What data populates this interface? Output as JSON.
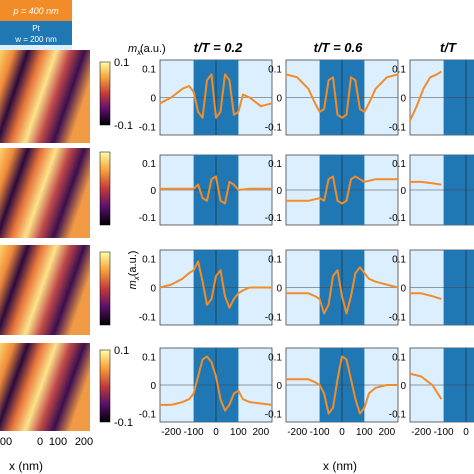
{
  "legend": {
    "p_label": "p = 400 nm",
    "pt_label": "Pt",
    "w_label": "w = 200 nm",
    "colors": {
      "orange": "#f28c28",
      "pt_blue": "#1f78b4",
      "light_blue": "#dcefff"
    }
  },
  "colorbar": {
    "label": "m",
    "label_sub": "x",
    "unit": "(a.u.)",
    "ticks": [
      "0.1",
      "0",
      "-0.1"
    ]
  },
  "left_axis": {
    "xlabel": "x (nm)",
    "xticks": [
      "00",
      "0",
      "100",
      "200"
    ]
  },
  "mid_axis": {
    "xlabel": "x (nm)"
  },
  "ylabel_main": "m",
  "ylabel_sub": "x",
  "ylabel_unit": "(a.u.)",
  "col_titles": [
    {
      "prefix": "t/T = 0.2"
    },
    {
      "prefix": "t/T = 0.6"
    },
    {
      "prefix": "t/T"
    }
  ],
  "chart_data": {
    "type": "line",
    "x_range": [
      -250,
      250
    ],
    "y_range": [
      -0.13,
      0.13
    ],
    "yticks": [
      "0.1",
      "0",
      "-0.1"
    ],
    "xticks": [
      "-200",
      "-100",
      "0",
      "100",
      "200"
    ],
    "xtick_values": [
      -200,
      -100,
      0,
      100,
      200
    ],
    "ytick_values": [
      0.1,
      0,
      -0.1
    ],
    "pt_region": [
      -100,
      100
    ],
    "rows": [
      [
        {
          "x": [
            -250,
            -200,
            -150,
            -120,
            -100,
            -80,
            -60,
            -40,
            -20,
            0,
            20,
            40,
            60,
            80,
            100,
            120,
            150,
            200,
            250
          ],
          "y": [
            -0.02,
            0.0,
            0.03,
            0.04,
            0.02,
            -0.05,
            -0.07,
            0.06,
            0.08,
            -0.07,
            -0.05,
            0.08,
            0.06,
            -0.06,
            -0.05,
            0.01,
            0.0,
            -0.03,
            -0.02
          ]
        },
        {
          "x": [
            -250,
            -200,
            -150,
            -120,
            -100,
            -80,
            -60,
            -40,
            -20,
            0,
            20,
            40,
            60,
            80,
            100,
            120,
            150,
            200,
            250
          ],
          "y": [
            0.08,
            0.07,
            0.03,
            -0.02,
            -0.05,
            -0.04,
            0.06,
            0.07,
            -0.06,
            -0.07,
            -0.06,
            0.07,
            0.06,
            -0.04,
            -0.05,
            -0.02,
            0.03,
            0.07,
            0.08
          ]
        },
        {
          "x": [
            -250,
            -220,
            -190,
            -160,
            -130,
            -110
          ],
          "y": [
            -0.08,
            -0.03,
            0.03,
            0.07,
            0.08,
            0.09
          ]
        }
      ],
      [
        {
          "x": [
            -250,
            -200,
            -150,
            -100,
            -80,
            -60,
            -40,
            -20,
            0,
            20,
            40,
            60,
            80,
            100,
            150,
            200,
            250
          ],
          "y": [
            0.005,
            0.005,
            0.005,
            0.005,
            0.02,
            -0.03,
            -0.04,
            0.04,
            0.05,
            -0.04,
            -0.05,
            0.03,
            0.02,
            0.0,
            0.005,
            0.005,
            0.005
          ]
        },
        {
          "x": [
            -250,
            -200,
            -150,
            -100,
            -80,
            -60,
            -40,
            -20,
            0,
            20,
            40,
            60,
            80,
            100,
            150,
            200,
            250
          ],
          "y": [
            -0.04,
            -0.04,
            -0.04,
            -0.03,
            -0.04,
            0.04,
            0.05,
            -0.04,
            -0.05,
            -0.04,
            0.04,
            0.05,
            0.04,
            0.03,
            0.04,
            0.04,
            0.04
          ]
        },
        {
          "x": [
            -250,
            -200,
            -150,
            -110
          ],
          "y": [
            0.03,
            0.03,
            0.025,
            0.02
          ]
        }
      ],
      [
        {
          "x": [
            -250,
            -200,
            -150,
            -120,
            -100,
            -80,
            -60,
            -40,
            -20,
            0,
            20,
            40,
            60,
            80,
            100,
            120,
            150,
            200,
            250
          ],
          "y": [
            0.0,
            0.01,
            0.03,
            0.05,
            0.06,
            0.09,
            0.02,
            -0.06,
            -0.04,
            0.04,
            0.06,
            -0.03,
            -0.07,
            -0.04,
            -0.02,
            -0.01,
            0.0,
            0.0,
            0.0
          ]
        },
        {
          "x": [
            -250,
            -200,
            -150,
            -120,
            -100,
            -80,
            -60,
            -40,
            -20,
            0,
            20,
            40,
            60,
            80,
            100,
            120,
            150,
            200,
            250
          ],
          "y": [
            -0.02,
            -0.02,
            -0.02,
            -0.03,
            -0.04,
            -0.09,
            -0.06,
            0.04,
            0.06,
            -0.03,
            -0.09,
            -0.03,
            0.05,
            0.07,
            0.05,
            0.03,
            0.02,
            0.01,
            0.0
          ]
        },
        {
          "x": [
            -250,
            -200,
            -150,
            -110
          ],
          "y": [
            -0.02,
            -0.02,
            -0.03,
            -0.04
          ]
        }
      ],
      [
        {
          "x": [
            -250,
            -200,
            -150,
            -120,
            -100,
            -80,
            -60,
            -40,
            -20,
            0,
            20,
            40,
            60,
            80,
            100,
            120,
            150,
            200,
            250
          ],
          "y": [
            -0.07,
            -0.07,
            -0.06,
            -0.05,
            -0.03,
            0.03,
            0.09,
            0.1,
            0.08,
            0.03,
            -0.05,
            -0.09,
            -0.07,
            -0.03,
            -0.02,
            -0.05,
            -0.06,
            -0.065,
            -0.07
          ]
        },
        {
          "x": [
            -250,
            -200,
            -150,
            -120,
            -100,
            -80,
            -60,
            -40,
            -20,
            0,
            20,
            40,
            60,
            80,
            100,
            120,
            150,
            200,
            250
          ],
          "y": [
            0.02,
            0.02,
            0.02,
            0.01,
            0.0,
            -0.03,
            -0.1,
            -0.08,
            0.02,
            0.1,
            0.09,
            0.02,
            -0.05,
            -0.1,
            -0.08,
            -0.03,
            -0.01,
            0.0,
            0.0
          ]
        },
        {
          "x": [
            -250,
            -200,
            -150,
            -110
          ],
          "y": [
            0.04,
            0.03,
            0.0,
            -0.05
          ]
        }
      ]
    ]
  }
}
